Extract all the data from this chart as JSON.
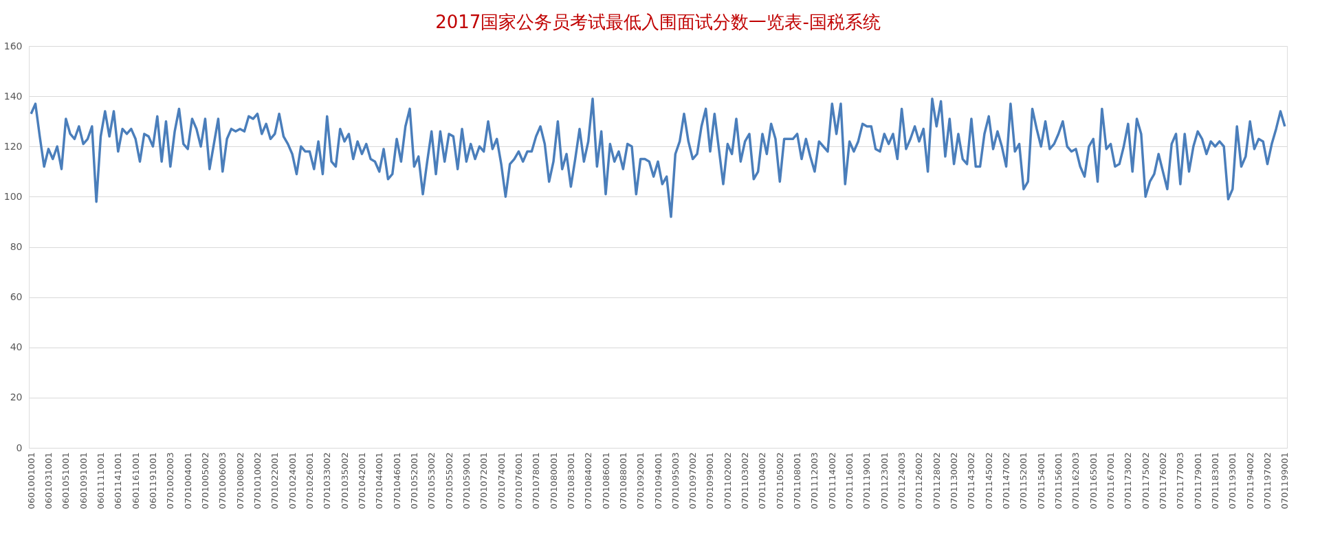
{
  "chart_data": {
    "type": "line",
    "title": "2017国家公务员考试最低入围面试分数一览表-国税系统",
    "categories": [
      "0601001001",
      null,
      null,
      null,
      "0601031001",
      null,
      null,
      null,
      "0601051001",
      null,
      null,
      null,
      "0601091001",
      null,
      null,
      null,
      "0601111001",
      null,
      null,
      null,
      "0601141001",
      null,
      null,
      null,
      "0601161001",
      null,
      null,
      null,
      "0601191001",
      null,
      null,
      null,
      "0701002003",
      null,
      null,
      null,
      "0701004001",
      null,
      null,
      null,
      "0701005002",
      null,
      null,
      null,
      "0701006003",
      null,
      null,
      null,
      "0701008002",
      null,
      null,
      null,
      "0701010002",
      null,
      null,
      null,
      "0701022001",
      null,
      null,
      null,
      "0701024001",
      null,
      null,
      null,
      "0701026001",
      null,
      null,
      null,
      "0701033002",
      null,
      null,
      null,
      "0701035002",
      null,
      null,
      null,
      "0701042001",
      null,
      null,
      null,
      "0701044001",
      null,
      null,
      null,
      "0701046001",
      null,
      null,
      null,
      "0701052001",
      null,
      null,
      null,
      "0701053002",
      null,
      null,
      null,
      "0701055002",
      null,
      null,
      null,
      "0701059001",
      null,
      null,
      null,
      "0701072001",
      null,
      null,
      null,
      "0701074001",
      null,
      null,
      null,
      "0701076001",
      null,
      null,
      null,
      "0701078001",
      null,
      null,
      null,
      "0701080001",
      null,
      null,
      null,
      "0701083001",
      null,
      null,
      null,
      "0701084002",
      null,
      null,
      null,
      "0701086001",
      null,
      null,
      null,
      "0701088001",
      null,
      null,
      null,
      "0701092001",
      null,
      null,
      null,
      "0701094001",
      null,
      null,
      null,
      "0701095003",
      null,
      null,
      null,
      "0701097002",
      null,
      null,
      null,
      "0701099001",
      null,
      null,
      null,
      "0701102002",
      null,
      null,
      null,
      "0701103002",
      null,
      null,
      null,
      "0701104002",
      null,
      null,
      null,
      "0701105002",
      null,
      null,
      null,
      "0701108001",
      null,
      null,
      null,
      "0701112003",
      null,
      null,
      null,
      "0701114002",
      null,
      null,
      null,
      "0701116001",
      null,
      null,
      null,
      "0701119001",
      null,
      null,
      null,
      "0701123001",
      null,
      null,
      null,
      "0701124003",
      null,
      null,
      null,
      "0701126002",
      null,
      null,
      null,
      "0701128002",
      null,
      null,
      null,
      "0701130002",
      null,
      null,
      null,
      "0701143002",
      null,
      null,
      null,
      "0701145002",
      null,
      null,
      null,
      "0701147002",
      null,
      null,
      null,
      "0701152001",
      null,
      null,
      null,
      "0701154001",
      null,
      null,
      null,
      "0701156001",
      null,
      null,
      null,
      "0701162003",
      null,
      null,
      null,
      "0701165001",
      null,
      null,
      null,
      "0701167001",
      null,
      null,
      null,
      "0701173002",
      null,
      null,
      null,
      "0701175002",
      null,
      null,
      null,
      "0701176002",
      null,
      null,
      null,
      "0701177003",
      null,
      null,
      null,
      "0701179001",
      null,
      null,
      null,
      "0701183001",
      null,
      null,
      null,
      "0701193001",
      null,
      null,
      null,
      "0701194002",
      null,
      null,
      null,
      "0701197002",
      null,
      null,
      null,
      "0701199001"
    ],
    "series": [
      {
        "color": "#4a7ebb",
        "values": [
          133,
          137,
          124,
          112,
          119,
          115,
          120,
          111,
          131,
          125,
          123,
          128,
          121,
          123,
          128,
          98,
          124,
          134,
          124,
          134,
          118,
          127,
          125,
          127,
          123,
          114,
          125,
          124,
          120,
          132,
          114,
          130,
          112,
          126,
          135,
          121,
          119,
          131,
          127,
          120,
          131,
          111,
          121,
          131,
          110,
          123,
          127,
          126,
          127,
          126,
          132,
          131,
          133,
          125,
          129,
          123,
          125,
          133,
          124,
          121,
          117,
          109,
          120,
          118,
          118,
          111,
          122,
          109,
          132,
          114,
          112,
          127,
          122,
          125,
          115,
          122,
          117,
          121,
          115,
          114,
          110,
          119,
          107,
          109,
          123,
          114,
          128,
          135,
          112,
          116,
          101,
          114,
          126,
          109,
          126,
          114,
          125,
          124,
          111,
          127,
          114,
          121,
          115,
          120,
          118,
          130,
          119,
          123,
          113,
          100,
          113,
          115,
          118,
          114,
          118,
          118,
          124,
          128,
          121,
          106,
          114,
          130,
          111,
          117,
          104,
          115,
          127,
          114,
          122,
          139,
          112,
          126,
          101,
          121,
          114,
          118,
          111,
          121,
          120,
          101,
          115,
          115,
          114,
          108,
          114,
          105,
          108,
          92,
          117,
          122,
          133,
          122,
          115,
          117,
          128,
          135,
          118,
          133,
          119,
          105,
          121,
          117,
          131,
          114,
          122,
          125,
          107,
          110,
          125,
          117,
          129,
          123,
          106,
          123,
          123,
          123,
          125,
          115,
          123,
          116,
          110,
          122,
          120,
          118,
          137,
          125,
          137,
          105,
          122,
          118,
          122,
          129,
          128,
          128,
          119,
          118,
          125,
          121,
          125,
          115,
          135,
          119,
          123,
          128,
          122,
          127,
          110,
          139,
          128,
          138,
          116,
          131,
          113,
          125,
          115,
          113,
          131,
          112,
          112,
          125,
          132,
          119,
          126,
          120,
          112,
          137,
          118,
          121,
          103,
          106,
          135,
          127,
          120,
          130,
          119,
          121,
          125,
          130,
          120,
          118,
          119,
          112,
          108,
          120,
          123,
          106,
          135,
          119,
          121,
          112,
          113,
          120,
          129,
          110,
          131,
          125,
          100,
          106,
          109,
          117,
          110,
          103,
          121,
          125,
          105,
          125,
          110,
          120,
          126,
          123,
          117,
          122,
          120,
          122,
          120,
          99,
          103,
          128,
          112,
          116,
          130,
          119,
          123,
          122,
          113,
          121,
          127,
          134,
          128
        ]
      }
    ],
    "ylim": [
      0,
      160
    ],
    "yticks": [
      0,
      20,
      40,
      60,
      80,
      100,
      120,
      140,
      160
    ],
    "grid": "y",
    "legend": false,
    "marker": "none",
    "line_style": "solid"
  }
}
